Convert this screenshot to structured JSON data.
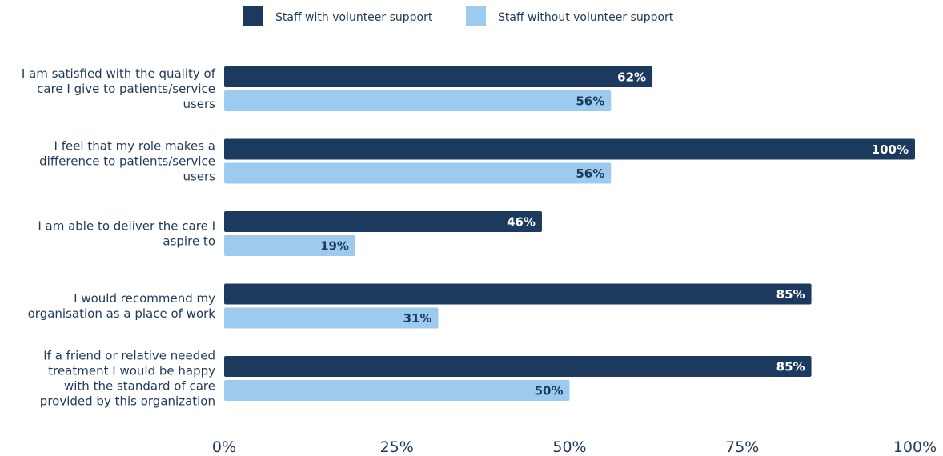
{
  "chart_data": {
    "type": "bar",
    "orientation": "horizontal",
    "title": "",
    "xlabel": "",
    "ylabel": "",
    "xlim": [
      0,
      100
    ],
    "x_ticks": [
      "0%",
      "25%",
      "50%",
      "75%",
      "100%"
    ],
    "x_tick_values": [
      0,
      25,
      50,
      75,
      100
    ],
    "grid": false,
    "legend_position": "top",
    "categories": [
      [
        "I am satisfied with the quality of",
        "care I give to patients/service",
        "users"
      ],
      [
        "I feel that my role makes a",
        "difference to patients/service",
        "users"
      ],
      [
        "I am able to deliver the care I",
        "aspire to"
      ],
      [
        "I would recommend my",
        "organisation as a place of work"
      ],
      [
        "If a friend or relative needed",
        "treatment I would be happy",
        "with the standard of care",
        "provided by this organization"
      ]
    ],
    "series": [
      {
        "name": "Staff with volunteer support",
        "color": "#1b3a5e",
        "label_color": "#ffffff",
        "values": [
          62,
          100,
          46,
          85,
          85
        ],
        "labels": [
          "62%",
          "100%",
          "46%",
          "85%",
          "85%"
        ]
      },
      {
        "name": "Staff without volunteer support",
        "color": "#9dcbf0",
        "label_color": "#1b3a5e",
        "values": [
          56,
          56,
          19,
          31,
          50
        ],
        "labels": [
          "56%",
          "56%",
          "19%",
          "31%",
          "50%"
        ]
      }
    ]
  }
}
